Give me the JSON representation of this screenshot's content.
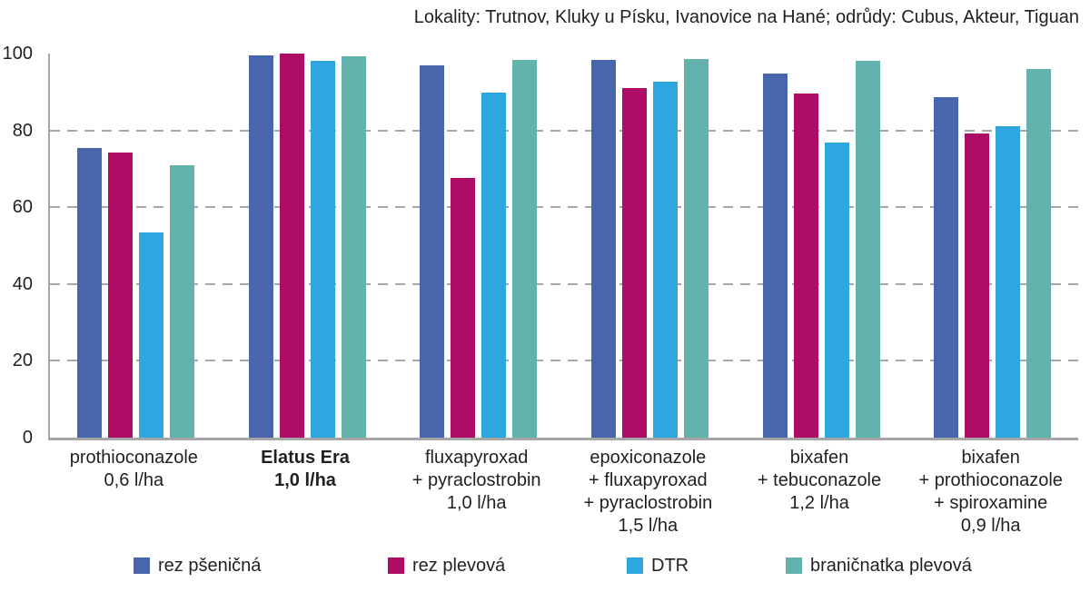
{
  "title": "Lokality: Trutnov, Kluky u Písku, Ivanovice na Hané; odrůdy: Cubus, Akteur, Tiguan",
  "chart_data": {
    "type": "bar",
    "title": "Lokality: Trutnov, Kluky u Písku, Ivanovice na Hané; odrůdy: Cubus, Akteur, Tiguan",
    "xlabel": "",
    "ylabel": "",
    "ylim": [
      0,
      100
    ],
    "yticks": [
      0,
      20,
      40,
      60,
      80,
      100
    ],
    "grid": "dashed-horizontal-20-40-60-80",
    "legend_position": "bottom",
    "categories": [
      {
        "label": "prothioconazole 0,6 l/ha",
        "lines": [
          "prothioconazole",
          "0,6 l/ha"
        ],
        "bold": false
      },
      {
        "label": "Elatus Era 1,0 l/ha",
        "lines": [
          "Elatus Era",
          "1,0 l/ha"
        ],
        "bold": true
      },
      {
        "label": "fluxapyroxad + pyraclostrobin 1,0 l/ha",
        "lines": [
          "fluxapyroxad",
          "+ pyraclostrobin",
          "1,0 l/ha"
        ],
        "bold": false
      },
      {
        "label": "epoxiconazole + fluxapyroxad + pyraclostrobin 1,5 l/ha",
        "lines": [
          "epoxiconazole",
          "+ fluxapyroxad",
          "+ pyraclostrobin",
          "1,5 l/ha"
        ],
        "bold": false
      },
      {
        "label": "bixafen + tebuconazole 1,2 l/ha",
        "lines": [
          "bixafen",
          "+ tebuconazole",
          "1,2 l/ha"
        ],
        "bold": false
      },
      {
        "label": "bixafen + prothioconazole + spiroxamine 0,9 l/ha",
        "lines": [
          "bixafen",
          "+ prothioconazole",
          "+ spiroxamine",
          "0,9 l/ha"
        ],
        "bold": false
      }
    ],
    "series": [
      {
        "name": "rez pšeničná",
        "color": "#4766ac",
        "values": [
          75.5,
          99.5,
          97.0,
          98.3,
          94.8,
          88.6
        ]
      },
      {
        "name": "rez plevová",
        "color": "#ae0d66",
        "values": [
          74.2,
          100.0,
          67.5,
          91.1,
          89.7,
          79.3
        ]
      },
      {
        "name": "DTR",
        "color": "#2ea7e0",
        "values": [
          53.5,
          98.0,
          89.8,
          92.6,
          76.8,
          81.0
        ]
      },
      {
        "name": "braničnatka plevová",
        "color": "#64b2ac",
        "values": [
          71.0,
          99.2,
          98.3,
          98.7,
          98.2,
          95.9
        ]
      }
    ]
  }
}
